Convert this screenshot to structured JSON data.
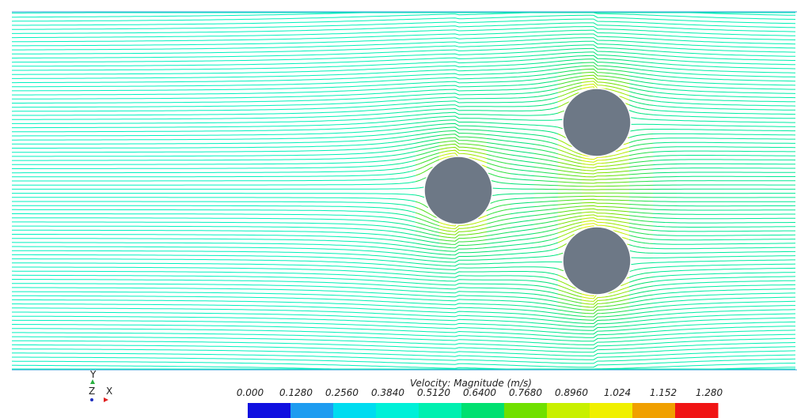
{
  "legend": {
    "title": "Velocity: Magnitude (m/s)",
    "labels": [
      "0.000",
      "0.1280",
      "0.2560",
      "0.3840",
      "0.5120",
      "0.6400",
      "0.7680",
      "0.8960",
      "1.024",
      "1.152",
      "1.280"
    ],
    "colors": [
      "#1010e0",
      "#1e9cf0",
      "#00dcf0",
      "#00f0d8",
      "#00f0b0",
      "#00e070",
      "#70e000",
      "#c8f000",
      "#f0f000",
      "#f0a000",
      "#f01414"
    ]
  },
  "axes": {
    "y": "Y",
    "z": "Z",
    "x": "X"
  }
}
